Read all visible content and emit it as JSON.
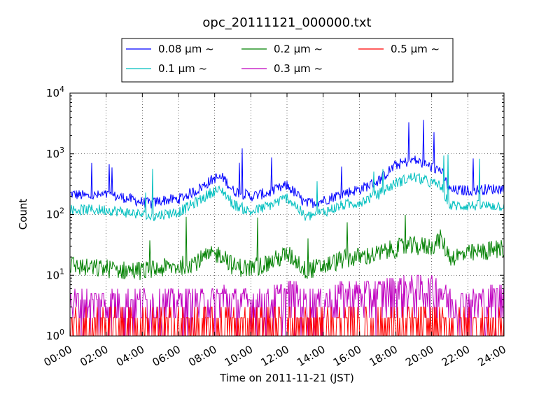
{
  "chart_data": {
    "type": "line",
    "title": "opc_20111121_000000.txt",
    "xlabel": "Time on 2011-11-21 (JST)",
    "ylabel": "Count",
    "xlim": [
      "00:00",
      "24:00"
    ],
    "ylim": [
      1,
      10000
    ],
    "y_scale": "log",
    "grid": true,
    "legend_position": "top-outside",
    "x_ticks": [
      "00:00",
      "02:00",
      "04:00",
      "06:00",
      "08:00",
      "10:00",
      "12:00",
      "14:00",
      "16:00",
      "18:00",
      "20:00",
      "22:00",
      "24:00"
    ],
    "y_ticks": [
      {
        "value": 1,
        "base": "10",
        "exp": "0"
      },
      {
        "value": 10,
        "base": "10",
        "exp": "1"
      },
      {
        "value": 100,
        "base": "10",
        "exp": "2"
      },
      {
        "value": 1000,
        "base": "10",
        "exp": "3"
      },
      {
        "value": 10000,
        "base": "10",
        "exp": "4"
      }
    ],
    "x_hours": [
      0,
      1,
      2,
      3,
      4,
      4.5,
      5,
      6,
      7,
      8,
      8.5,
      9,
      10,
      11,
      12,
      12.5,
      13,
      14,
      15,
      16,
      17,
      18,
      19,
      20,
      20.5,
      21,
      22,
      23,
      24
    ],
    "series": [
      {
        "name": "0.08 µm ~",
        "color": "#0000ff",
        "values": [
          220,
          200,
          210,
          190,
          160,
          150,
          170,
          180,
          250,
          400,
          400,
          250,
          200,
          230,
          300,
          220,
          150,
          170,
          220,
          260,
          350,
          650,
          800,
          600,
          550,
          250,
          250,
          260,
          270
        ]
      },
      {
        "name": "0.1 µm ~",
        "color": "#00bfbf",
        "values": [
          120,
          120,
          120,
          110,
          100,
          90,
          100,
          110,
          160,
          250,
          240,
          150,
          110,
          140,
          190,
          140,
          90,
          110,
          140,
          160,
          210,
          330,
          420,
          330,
          300,
          140,
          140,
          140,
          140
        ]
      },
      {
        "name": "0.2 µm ~",
        "color": "#008000",
        "values": [
          15,
          13,
          13,
          12,
          12,
          12,
          13,
          14,
          17,
          22,
          22,
          14,
          13,
          16,
          22,
          18,
          12,
          14,
          18,
          20,
          22,
          28,
          30,
          30,
          40,
          20,
          22,
          25,
          28
        ]
      },
      {
        "name": "0.3 µm ~",
        "color": "#bf00bf",
        "values": [
          3,
          3,
          3,
          3,
          3,
          3,
          3,
          3,
          3,
          3,
          4,
          3,
          3,
          3,
          4,
          4,
          3,
          3,
          4,
          4,
          4,
          5,
          5,
          5,
          5,
          3,
          3,
          3,
          4
        ]
      },
      {
        "name": "0.5 µm ~",
        "color": "#ff0000",
        "values": [
          1.5,
          1.3,
          1.3,
          1.3,
          1.2,
          1.2,
          1.3,
          1.3,
          1.3,
          1.4,
          1.4,
          1.3,
          1.3,
          1.3,
          1.4,
          1.4,
          1.3,
          1.3,
          1.5,
          1.5,
          1.6,
          1.7,
          1.8,
          1.7,
          1.7,
          1.3,
          1.3,
          1.3,
          1.3
        ]
      }
    ]
  }
}
